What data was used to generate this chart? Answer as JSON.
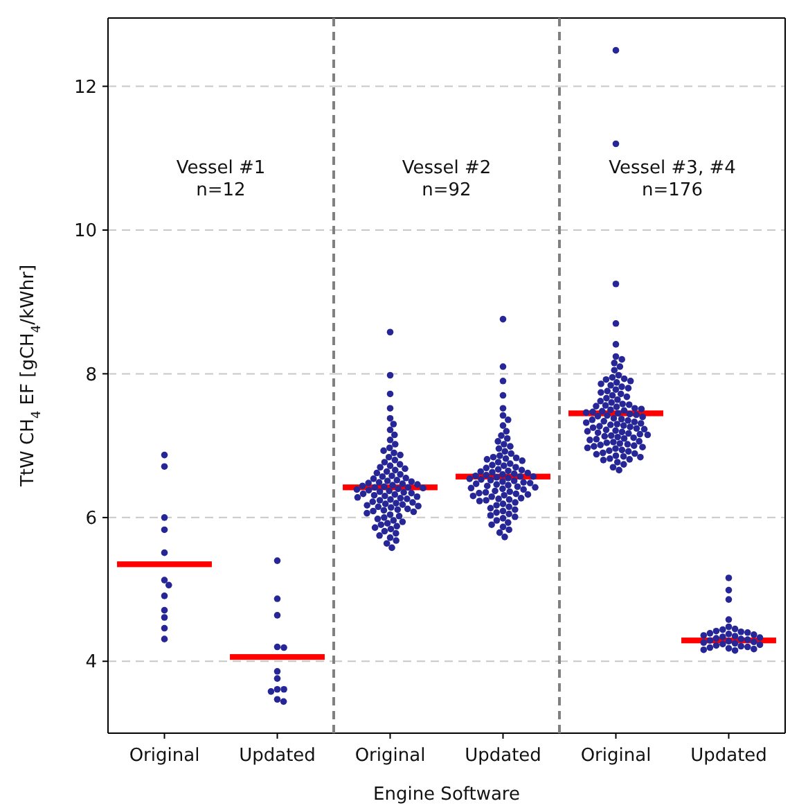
{
  "chart_data": [
    {
      "type": "scatter",
      "ylabel": "TtW CH$_{4}$ EF [gCH$_{4}$/kWhr]",
      "categories": [
        "Original",
        "Updated"
      ],
      "ylim": [
        3,
        12.95
      ],
      "yticks": [
        4,
        6,
        8,
        10,
        12
      ],
      "grid": "y",
      "marker": "circle",
      "annotations": [
        "Vessel #1\nn=12"
      ],
      "series": [
        {
          "color": "#262696",
          "x": [
            "Original",
            "Original",
            "Original",
            "Original",
            "Original",
            "Original",
            "Original",
            "Original",
            "Original",
            "Original",
            "Original",
            "Original"
          ],
          "values": [
            6.87,
            6.71,
            6.0,
            5.83,
            5.51,
            5.13,
            5.06,
            4.91,
            4.71,
            4.61,
            4.46,
            4.31
          ]
        },
        {
          "color": "#262696",
          "x": [
            "Updated",
            "Updated",
            "Updated",
            "Updated",
            "Updated",
            "Updated",
            "Updated",
            "Updated",
            "Updated",
            "Updated",
            "Updated",
            "Updated"
          ],
          "values": [
            5.4,
            4.87,
            4.64,
            4.2,
            4.19,
            3.86,
            3.76,
            3.61,
            3.58,
            3.61,
            3.47,
            3.44
          ]
        },
        {
          "type": "bar",
          "color": "#ff0000",
          "x": [
            "Original",
            "Updated"
          ],
          "base": [
            5.31,
            4.02
          ],
          "values": [
            0.08,
            0.08
          ]
        }
      ]
    },
    {
      "type": "scatter",
      "xlabel": "Engine Software",
      "categories": [
        "Original",
        "Updated"
      ],
      "ylim": [
        3,
        12.95
      ],
      "yticks": [
        4,
        6,
        8,
        10,
        12
      ],
      "grid": "y",
      "marker": "circle",
      "tick_labels": "x",
      "annotations": [
        "Vessel #2\nn=92"
      ],
      "series": [
        {
          "color": "#262696",
          "x": [
            "Original",
            "Original",
            "Original",
            "Original",
            "Original",
            "Original",
            "Original",
            "Original",
            "Original",
            "Original",
            "Original",
            "Original",
            "Original",
            "Original",
            "Original",
            "Original",
            "Original",
            "Original",
            "Original",
            "Original",
            "Original",
            "Original",
            "Original",
            "Original",
            "Original",
            "Original",
            "Original",
            "Original",
            "Original",
            "Original",
            "Original",
            "Original",
            "Original",
            "Original",
            "Original",
            "Original",
            "Original",
            "Original",
            "Original",
            "Original",
            "Original",
            "Original",
            "Original",
            "Original",
            "Original",
            "Original",
            "Original",
            "Original",
            "Original",
            "Original",
            "Original",
            "Original",
            "Original",
            "Original",
            "Original",
            "Original",
            "Original",
            "Original",
            "Original",
            "Original",
            "Original",
            "Original",
            "Original",
            "Original",
            "Original",
            "Original",
            "Original",
            "Original",
            "Original",
            "Original",
            "Original",
            "Original",
            "Original",
            "Original",
            "Original",
            "Original",
            "Original",
            "Original",
            "Original",
            "Original",
            "Original",
            "Original",
            "Original",
            "Original",
            "Original",
            "Original",
            "Original",
            "Original",
            "Original",
            "Original",
            "Original",
            "Original"
          ],
          "values": [
            8.58,
            7.98,
            7.72,
            7.52,
            7.38,
            7.3,
            7.22,
            7.15,
            7.08,
            7.02,
            6.97,
            6.93,
            6.9,
            6.87,
            6.84,
            6.8,
            6.77,
            6.74,
            6.72,
            6.7,
            6.68,
            6.66,
            6.64,
            6.62,
            6.6,
            6.58,
            6.57,
            6.55,
            6.54,
            6.52,
            6.51,
            6.5,
            6.49,
            6.48,
            6.47,
            6.46,
            6.45,
            6.44,
            6.43,
            6.42,
            6.42,
            6.41,
            6.4,
            6.39,
            6.38,
            6.37,
            6.36,
            6.35,
            6.34,
            6.33,
            6.32,
            6.31,
            6.3,
            6.29,
            6.28,
            6.27,
            6.26,
            6.25,
            6.24,
            6.22,
            6.21,
            6.2,
            6.19,
            6.18,
            6.17,
            6.16,
            6.15,
            6.14,
            6.12,
            6.11,
            6.1,
            6.09,
            6.08,
            6.06,
            6.04,
            6.02,
            6.0,
            5.98,
            5.96,
            5.94,
            5.92,
            5.9,
            5.88,
            5.86,
            5.84,
            5.81,
            5.78,
            5.75,
            5.72,
            5.68,
            5.64,
            5.58
          ]
        },
        {
          "color": "#262696",
          "x": [
            "Updated",
            "Updated",
            "Updated",
            "Updated",
            "Updated",
            "Updated",
            "Updated",
            "Updated",
            "Updated",
            "Updated",
            "Updated",
            "Updated",
            "Updated",
            "Updated",
            "Updated",
            "Updated",
            "Updated",
            "Updated",
            "Updated",
            "Updated",
            "Updated",
            "Updated",
            "Updated",
            "Updated",
            "Updated",
            "Updated",
            "Updated",
            "Updated",
            "Updated",
            "Updated",
            "Updated",
            "Updated",
            "Updated",
            "Updated",
            "Updated",
            "Updated",
            "Updated",
            "Updated",
            "Updated",
            "Updated",
            "Updated",
            "Updated",
            "Updated",
            "Updated",
            "Updated",
            "Updated",
            "Updated",
            "Updated",
            "Updated",
            "Updated",
            "Updated",
            "Updated",
            "Updated",
            "Updated",
            "Updated",
            "Updated",
            "Updated",
            "Updated",
            "Updated",
            "Updated",
            "Updated",
            "Updated",
            "Updated",
            "Updated",
            "Updated",
            "Updated",
            "Updated",
            "Updated",
            "Updated",
            "Updated",
            "Updated",
            "Updated",
            "Updated",
            "Updated",
            "Updated",
            "Updated",
            "Updated",
            "Updated",
            "Updated",
            "Updated",
            "Updated",
            "Updated",
            "Updated",
            "Updated",
            "Updated",
            "Updated",
            "Updated",
            "Updated",
            "Updated",
            "Updated",
            "Updated",
            "Updated"
          ],
          "values": [
            8.76,
            8.1,
            7.9,
            7.7,
            7.52,
            7.42,
            7.36,
            7.28,
            7.2,
            7.14,
            7.1,
            7.06,
            7.02,
            6.99,
            6.96,
            6.92,
            6.89,
            6.86,
            6.84,
            6.82,
            6.83,
            6.81,
            6.79,
            6.77,
            6.75,
            6.73,
            6.72,
            6.7,
            6.69,
            6.67,
            6.66,
            6.65,
            6.64,
            6.63,
            6.62,
            6.61,
            6.6,
            6.59,
            6.58,
            6.57,
            6.57,
            6.56,
            6.55,
            6.54,
            6.53,
            6.52,
            6.51,
            6.5,
            6.49,
            6.48,
            6.47,
            6.46,
            6.45,
            6.44,
            6.43,
            6.42,
            6.41,
            6.4,
            6.39,
            6.37,
            6.36,
            6.35,
            6.34,
            6.33,
            6.32,
            6.31,
            6.3,
            6.29,
            6.27,
            6.26,
            6.25,
            6.24,
            6.23,
            6.21,
            6.19,
            6.17,
            6.15,
            6.13,
            6.11,
            6.09,
            6.07,
            6.05,
            6.03,
            6.01,
            5.99,
            5.96,
            5.93,
            5.9,
            5.87,
            5.83,
            5.79,
            5.73
          ]
        },
        {
          "type": "bar",
          "color": "#ff0000",
          "x": [
            "Original",
            "Updated"
          ],
          "base": [
            6.38,
            6.53
          ],
          "values": [
            0.08,
            0.08
          ]
        }
      ]
    },
    {
      "type": "scatter",
      "categories": [
        "Original",
        "Updated"
      ],
      "ylim": [
        3,
        12.95
      ],
      "yticks": [
        4,
        6,
        8,
        10,
        12
      ],
      "grid": "y",
      "marker": "circle",
      "tick_labels": "x",
      "annotations": [
        "Vessel #3, #4\nn=176"
      ],
      "series": [
        {
          "color": "#262696",
          "x": [
            "Original",
            "Original",
            "Original",
            "Original",
            "Original",
            "Original",
            "Original",
            "Original",
            "Original",
            "Original",
            "Original",
            "Original",
            "Original",
            "Original",
            "Original",
            "Original",
            "Original",
            "Original",
            "Original",
            "Original",
            "Original",
            "Original",
            "Original",
            "Original",
            "Original",
            "Original",
            "Original",
            "Original",
            "Original",
            "Original",
            "Original",
            "Original",
            "Original",
            "Original",
            "Original",
            "Original",
            "Original",
            "Original",
            "Original",
            "Original",
            "Original",
            "Original",
            "Original",
            "Original",
            "Original",
            "Original",
            "Original",
            "Original",
            "Original",
            "Original",
            "Original",
            "Original",
            "Original",
            "Original",
            "Original",
            "Original",
            "Original",
            "Original",
            "Original",
            "Original",
            "Original",
            "Original",
            "Original",
            "Original",
            "Original",
            "Original",
            "Original",
            "Original",
            "Original",
            "Original",
            "Original",
            "Original",
            "Original",
            "Original",
            "Original",
            "Original",
            "Original",
            "Original",
            "Original",
            "Original",
            "Original",
            "Original",
            "Original",
            "Original",
            "Original",
            "Original",
            "Original",
            "Original",
            "Original",
            "Original",
            "Original",
            "Original",
            "Original",
            "Original",
            "Original",
            "Original",
            "Original",
            "Original",
            "Original",
            "Original",
            "Original",
            "Original",
            "Original",
            "Original",
            "Original",
            "Original"
          ],
          "values": [
            12.5,
            11.2,
            9.25,
            8.7,
            8.41,
            8.24,
            8.2,
            8.15,
            8.1,
            8.05,
            7.98,
            7.95,
            7.93,
            7.92,
            7.9,
            7.88,
            7.86,
            7.84,
            7.82,
            7.8,
            7.78,
            7.76,
            7.74,
            7.72,
            7.7,
            7.68,
            7.66,
            7.64,
            7.62,
            7.6,
            7.58,
            7.57,
            7.56,
            7.55,
            7.54,
            7.52,
            7.51,
            7.5,
            7.49,
            7.48,
            7.47,
            7.46,
            7.45,
            7.44,
            7.43,
            7.42,
            7.41,
            7.4,
            7.38,
            7.37,
            7.36,
            7.35,
            7.34,
            7.33,
            7.32,
            7.31,
            7.3,
            7.29,
            7.28,
            7.27,
            7.26,
            7.25,
            7.24,
            7.23,
            7.22,
            7.21,
            7.2,
            7.19,
            7.18,
            7.17,
            7.16,
            7.15,
            7.14,
            7.05,
            7.03,
            7.01,
            6.99,
            6.97,
            6.93,
            6.89,
            6.85,
            6.81,
            7.13,
            7.12,
            7.11,
            7.1,
            7.09,
            7.08,
            7.06,
            7.04,
            7.02,
            7.0,
            6.98,
            6.96,
            6.94,
            6.92,
            6.9,
            6.88,
            6.86,
            6.84,
            6.82,
            6.8,
            6.77,
            6.74,
            6.7,
            6.66
          ]
        },
        {
          "color": "#262696",
          "x": [
            "Updated",
            "Updated",
            "Updated",
            "Updated",
            "Updated",
            "Updated",
            "Updated",
            "Updated",
            "Updated",
            "Updated",
            "Updated",
            "Updated",
            "Updated",
            "Updated",
            "Updated",
            "Updated",
            "Updated",
            "Updated",
            "Updated",
            "Updated",
            "Updated",
            "Updated",
            "Updated",
            "Updated",
            "Updated",
            "Updated",
            "Updated",
            "Updated",
            "Updated",
            "Updated",
            "Updated",
            "Updated",
            "Updated",
            "Updated",
            "Updated"
          ],
          "values": [
            5.16,
            4.99,
            4.86,
            4.58,
            4.48,
            4.45,
            4.44,
            4.42,
            4.41,
            4.4,
            4.39,
            4.38,
            4.37,
            4.36,
            4.35,
            4.34,
            4.33,
            4.32,
            4.31,
            4.3,
            4.29,
            4.28,
            4.27,
            4.26,
            4.25,
            4.24,
            4.23,
            4.22,
            4.21,
            4.2,
            4.19,
            4.18,
            4.17,
            4.16,
            4.15
          ]
        },
        {
          "type": "bar",
          "color": "#ff0000",
          "x": [
            "Original",
            "Updated"
          ],
          "base": [
            7.41,
            4.25
          ],
          "values": [
            0.08,
            0.08
          ]
        }
      ]
    }
  ]
}
